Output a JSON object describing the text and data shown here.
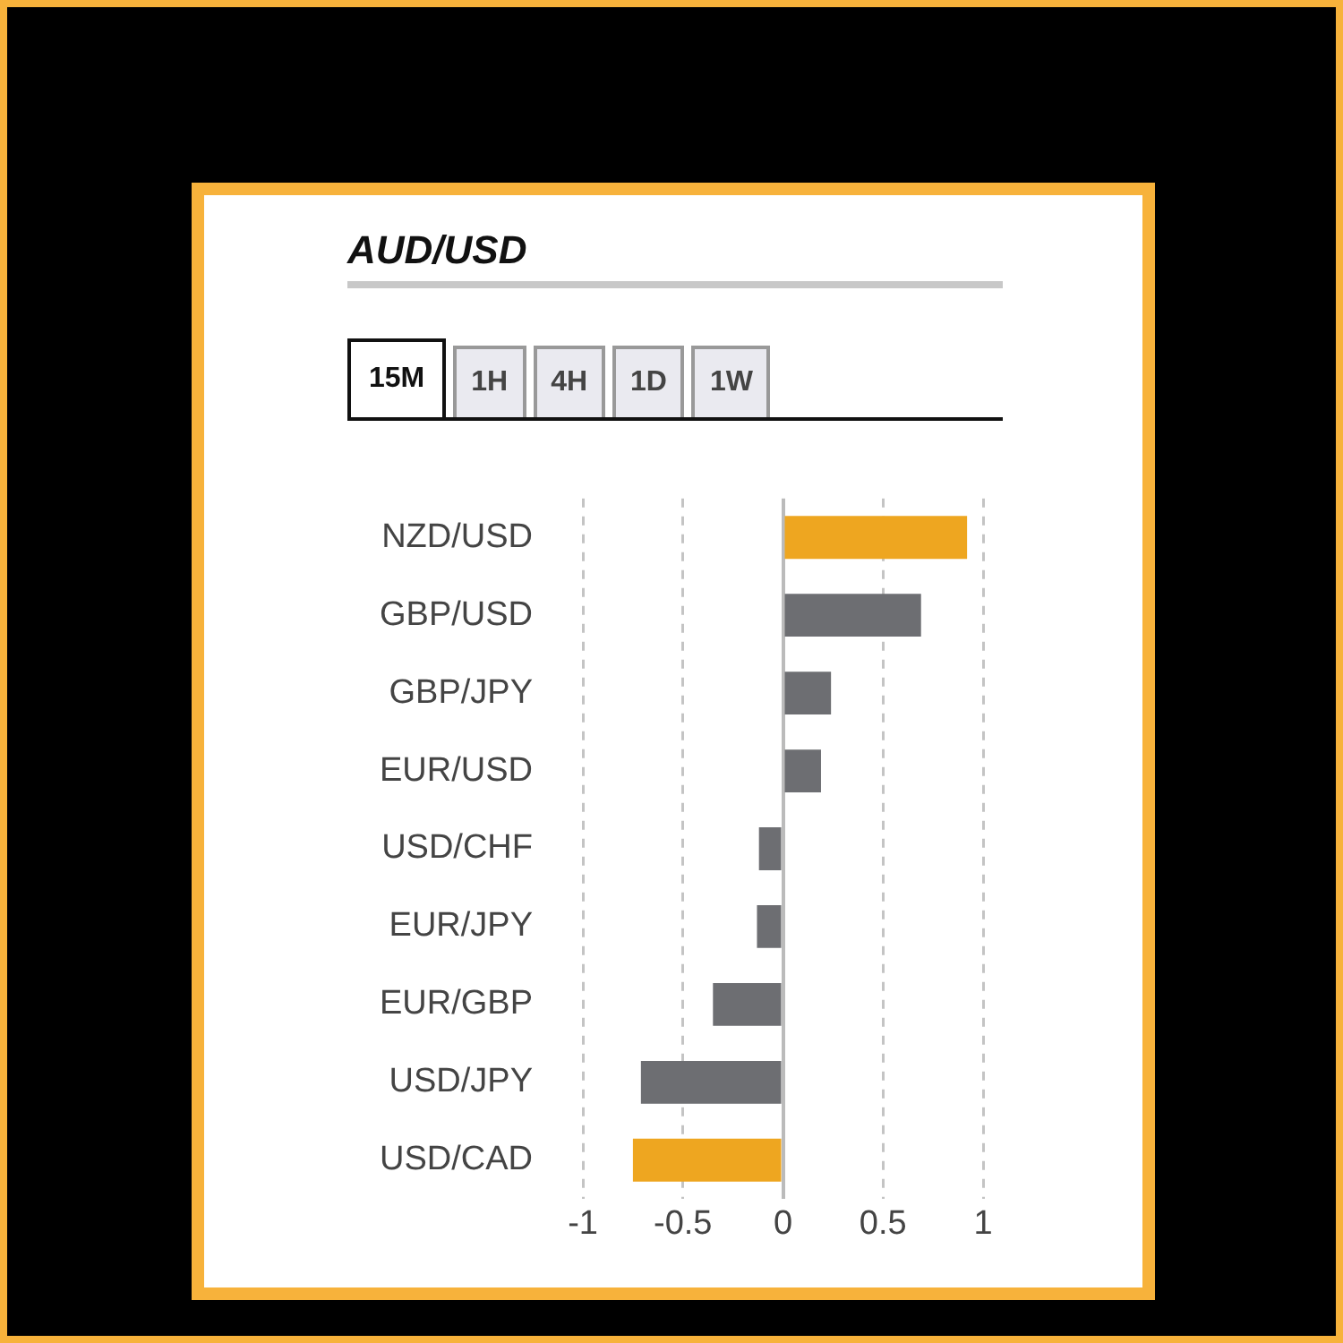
{
  "chart_data": {
    "type": "bar",
    "orientation": "horizontal",
    "title": "AUD/USD",
    "annotations": [
      "15M",
      "1H",
      "4H",
      "1D",
      "1W"
    ],
    "categories": [
      "NZD/USD",
      "GBP/USD",
      "GBP/JPY",
      "EUR/USD",
      "USD/CHF",
      "EUR/JPY",
      "EUR/GBP",
      "USD/JPY",
      "USD/CAD"
    ],
    "values": [
      0.92,
      0.69,
      0.24,
      0.19,
      -0.12,
      -0.13,
      -0.35,
      -0.71,
      -0.75
    ],
    "colors": [
      "#eea620",
      "#6d6e72",
      "#6d6e72",
      "#6d6e72",
      "#6d6e72",
      "#6d6e72",
      "#6d6e72",
      "#6d6e72",
      "#eea620"
    ],
    "xlim": [
      -1,
      1
    ],
    "xticks": [
      -1,
      -0.5,
      0,
      0.5,
      1
    ],
    "grid": "x",
    "legend": false
  }
}
